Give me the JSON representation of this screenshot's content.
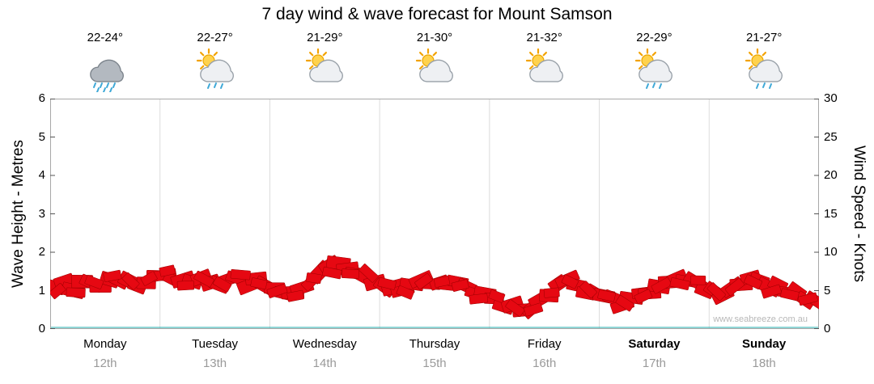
{
  "title": "7 day wind & wave forecast for Mount Samson",
  "watermark": "www.seabreeze.com.au",
  "left_axis": {
    "label": "Wave Height - Metres",
    "ticks": [
      0,
      1,
      2,
      3,
      4,
      5,
      6
    ],
    "min": 0,
    "max": 6
  },
  "right_axis": {
    "label": "Wind Speed - Knots",
    "ticks": [
      0,
      5,
      10,
      15,
      20,
      25,
      30
    ],
    "min": 0,
    "max": 30
  },
  "days": [
    {
      "name": "Monday",
      "date": "12th",
      "temp": "22-24°",
      "icon": "rain-cloud-icon",
      "weekend": false
    },
    {
      "name": "Tuesday",
      "date": "13th",
      "temp": "22-27°",
      "icon": "sun-cloud-rain-icon",
      "weekend": false
    },
    {
      "name": "Wednesday",
      "date": "14th",
      "temp": "21-29°",
      "icon": "sun-cloud-icon",
      "weekend": false
    },
    {
      "name": "Thursday",
      "date": "15th",
      "temp": "21-30°",
      "icon": "sun-cloud-icon",
      "weekend": false
    },
    {
      "name": "Friday",
      "date": "16th",
      "temp": "21-32°",
      "icon": "sun-cloud-icon",
      "weekend": false
    },
    {
      "name": "Saturday",
      "date": "17th",
      "temp": "22-29°",
      "icon": "sun-cloud-rain-icon",
      "weekend": true
    },
    {
      "name": "Sunday",
      "date": "18th",
      "temp": "21-27°",
      "icon": "sun-cloud-rain-icon",
      "weekend": true
    }
  ],
  "chart_data": {
    "type": "area",
    "title": "7 day wind & wave forecast for Mount Samson",
    "x_categories": [
      "Monday 12th",
      "Tuesday 13th",
      "Wednesday 14th",
      "Thursday 15th",
      "Friday 16th",
      "Saturday 17th",
      "Sunday 18th"
    ],
    "points_per_day": 12,
    "ylabel_left": "Wave Height - Metres",
    "ylabel_right": "Wind Speed - Knots",
    "ylim_left": [
      0,
      6
    ],
    "ylim_right": [
      0,
      30
    ],
    "wind_scale_factor_knots_per_metre": 5,
    "grid": "vertical-day-boundaries",
    "legend": "none",
    "band_color": "#e60812",
    "series": [
      {
        "name": "Wave Height (m)",
        "values": [
          1.15,
          1.25,
          1.1,
          1.3,
          1.2,
          1.15,
          1.25,
          1.3,
          1.2,
          1.15,
          1.25,
          1.35,
          1.35,
          1.25,
          1.3,
          1.2,
          1.3,
          1.25,
          1.2,
          1.3,
          1.25,
          1.2,
          1.25,
          1.2,
          1.1,
          0.95,
          0.9,
          1.05,
          1.2,
          1.4,
          1.6,
          1.75,
          1.6,
          1.45,
          1.3,
          1.2,
          1.15,
          1.05,
          1.0,
          1.1,
          1.2,
          1.15,
          1.2,
          1.25,
          1.15,
          1.05,
          0.95,
          0.9,
          0.75,
          0.6,
          0.55,
          0.5,
          0.6,
          0.75,
          0.95,
          1.15,
          1.25,
          1.15,
          1.0,
          0.9,
          0.85,
          0.75,
          0.7,
          0.75,
          0.85,
          1.0,
          1.1,
          1.2,
          1.3,
          1.25,
          1.15,
          1.1,
          1.0,
          0.9,
          1.0,
          1.15,
          1.25,
          1.2,
          1.1,
          1.15,
          1.0,
          0.9,
          0.8,
          0.7
        ]
      }
    ]
  }
}
